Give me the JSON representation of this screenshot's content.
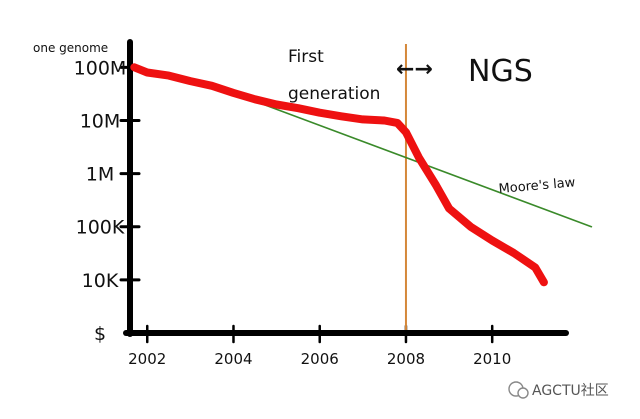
{
  "chart_data": {
    "type": "line",
    "ylabel": "one genome",
    "y_scale": "log",
    "y_ticks": [
      {
        "label": "100M",
        "value": 100000000
      },
      {
        "label": "10M",
        "value": 10000000
      },
      {
        "label": "1M",
        "value": 1000000
      },
      {
        "label": "100K",
        "value": 100000
      },
      {
        "label": "10K",
        "value": 10000
      },
      {
        "label": "$",
        "value": 1000
      }
    ],
    "x_ticks": [
      2002,
      2004,
      2006,
      2008,
      2010
    ],
    "xlim": [
      2001.6,
      2012.5
    ],
    "ylim": [
      1000,
      300000000
    ],
    "series": [
      {
        "color": "#ee1111",
        "x": [
          2001.7,
          2002.0,
          2002.5,
          2003.0,
          2003.5,
          2004.0,
          2004.5,
          2005.0,
          2005.5,
          2006.0,
          2006.5,
          2007.0,
          2007.5,
          2007.8,
          2008.0,
          2008.3,
          2008.7,
          2009.0,
          2009.5,
          2010.0,
          2010.5,
          2011.0,
          2011.2
        ],
        "y": [
          100000000,
          80000000,
          70000000,
          55000000,
          45000000,
          33000000,
          25000000,
          20000000,
          17000000,
          14000000,
          12000000,
          10500000,
          10000000,
          9000000,
          6000000,
          2000000,
          600000,
          220000,
          100000,
          55000,
          32000,
          17000,
          9000
        ]
      },
      {
        "name": "Moore's law",
        "color": "#3a8a2a",
        "x": [
          2004.7,
          2012.3
        ],
        "y": [
          20000000,
          100000
        ]
      }
    ],
    "annotations": [
      {
        "text_lines": [
          "First",
          "generation"
        ],
        "arrow": "←→",
        "right_text": "NGS",
        "x": 2008.0
      }
    ],
    "grid": false,
    "vline": {
      "x": 2008.0,
      "color": "#d4883a"
    }
  },
  "watermark": {
    "text": "AGCTU社区"
  }
}
